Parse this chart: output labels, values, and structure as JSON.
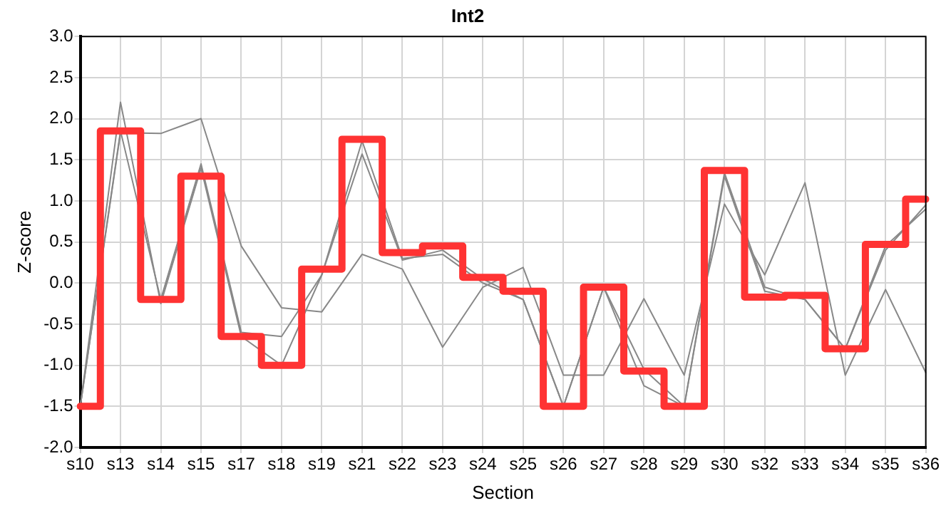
{
  "chart_data": {
    "type": "line",
    "title": "Int2",
    "xlabel": "Section",
    "ylabel": "Z-score",
    "categories": [
      "s10",
      "s13",
      "s14",
      "s15",
      "s17",
      "s18",
      "s19",
      "s21",
      "s22",
      "s23",
      "s24",
      "s25",
      "s26",
      "s27",
      "s28",
      "s29",
      "s30",
      "s32",
      "s33",
      "s34",
      "s35",
      "s36"
    ],
    "series": [
      {
        "type": "line",
        "color": "#888888",
        "values": [
          -1.5,
          1.83,
          1.82,
          2.0,
          0.45,
          -0.3,
          -0.35,
          0.35,
          0.17,
          -0.78,
          -0.05,
          0.19,
          -1.12,
          -1.12,
          -0.19,
          -1.12,
          0.96,
          0.1,
          1.22,
          -1.12,
          -0.08,
          -1.09
        ]
      },
      {
        "type": "line",
        "color": "#888888",
        "values": [
          -1.5,
          2.2,
          -0.25,
          1.4,
          -0.65,
          -1.0,
          0.1,
          1.73,
          0.3,
          0.35,
          0.0,
          -0.2,
          -1.5,
          -0.05,
          -1.25,
          -1.5,
          1.34,
          -0.05,
          -0.2,
          -0.8,
          0.4,
          0.95
        ]
      },
      {
        "type": "line",
        "color": "#888888",
        "values": [
          -1.5,
          1.85,
          -0.2,
          1.45,
          -0.6,
          -0.65,
          0.1,
          1.57,
          0.28,
          0.4,
          0.05,
          -0.2,
          -1.5,
          -0.05,
          -1.05,
          -1.5,
          1.3,
          -0.1,
          -0.2,
          -0.8,
          0.45,
          0.9
        ]
      },
      {
        "type": "step",
        "color": "#ff3333",
        "values": [
          -1.5,
          1.85,
          -0.2,
          1.3,
          -0.65,
          -1.0,
          0.17,
          1.75,
          0.37,
          0.45,
          0.07,
          -0.1,
          -1.5,
          -0.05,
          -1.07,
          -1.5,
          1.37,
          -0.17,
          -0.15,
          -0.8,
          0.47,
          1.02
        ]
      }
    ],
    "ylim": [
      -2.0,
      3.0
    ],
    "yticks": [
      {
        "value": -2,
        "label": "-2.0"
      },
      {
        "value": -1.5,
        "label": "-1.5"
      },
      {
        "value": -1,
        "label": "-1.0"
      },
      {
        "value": -0.5,
        "label": "-0.5"
      },
      {
        "value": 0,
        "label": "0.0"
      },
      {
        "value": 0.5,
        "label": "0.5"
      },
      {
        "value": 1,
        "label": "1.0"
      },
      {
        "value": 1.5,
        "label": "1.5"
      },
      {
        "value": 2,
        "label": "2.0"
      },
      {
        "value": 2.5,
        "label": "2.5"
      },
      {
        "value": 3,
        "label": "3.0"
      }
    ],
    "grid": true,
    "legend": false,
    "marker": "none",
    "line_style": "solid"
  }
}
